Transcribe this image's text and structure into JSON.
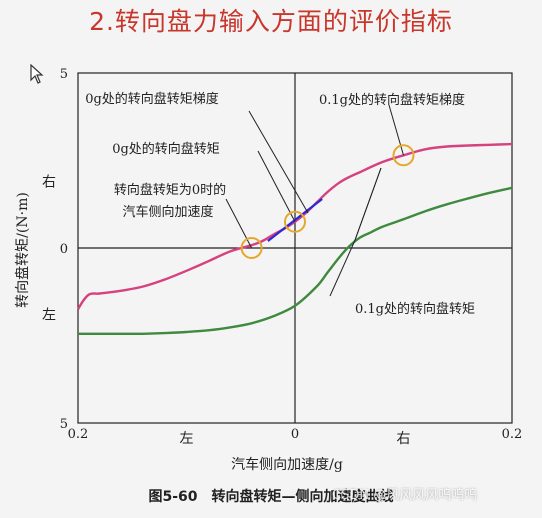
{
  "slide": {
    "title": "2.转向盘力输入方面的评价指标",
    "caption": "图5-60　转向盘转矩—侧向加速度曲线",
    "watermark": "CSDN @风风风风呜呜呜"
  },
  "chart_data": {
    "type": "line",
    "xlabel": "汽车侧向加速度/g",
    "ylabel": "转向盘转矩/(N·m)",
    "xlim": [
      -0.2,
      0.2
    ],
    "ylim": [
      -5,
      5
    ],
    "x_ticks": [
      {
        "value": -0.2,
        "label": "0.2"
      },
      {
        "value": 0,
        "label": "0"
      },
      {
        "value": 0.2,
        "label": "0.2"
      }
    ],
    "y_ticks": [
      {
        "value": 5,
        "label": "5"
      },
      {
        "value": 0,
        "label": "0"
      },
      {
        "value": -5,
        "label": "5"
      }
    ],
    "x_side_labels": [
      {
        "value": -0.1,
        "label": "左"
      },
      {
        "value": 0.1,
        "label": "右"
      }
    ],
    "y_side_labels": [
      {
        "value": 1.9,
        "label": "右"
      },
      {
        "value": -1.9,
        "label": "左"
      }
    ],
    "grid": false,
    "colors": {
      "series1": "#d6417f",
      "series2": "#3f8a3e",
      "highlight": "#e5a82b",
      "tangent": "#2a2ad4"
    },
    "series": [
      {
        "x": [
          -0.2,
          -0.195,
          -0.19,
          -0.185,
          -0.18,
          -0.16,
          -0.14,
          -0.12,
          -0.1,
          -0.08,
          -0.06,
          -0.04,
          -0.03,
          -0.02,
          -0.01,
          0,
          0.01,
          0.02,
          0.03,
          0.04,
          0.05,
          0.06,
          0.08,
          0.1,
          0.12,
          0.14,
          0.16,
          0.18,
          0.2
        ],
        "y": [
          -1.75,
          -1.5,
          -1.33,
          -1.3,
          -1.3,
          -1.22,
          -1.1,
          -0.9,
          -0.65,
          -0.38,
          -0.1,
          0.08,
          0.2,
          0.38,
          0.55,
          0.75,
          1.0,
          1.3,
          1.6,
          1.85,
          2.03,
          2.17,
          2.45,
          2.65,
          2.82,
          2.9,
          2.93,
          2.95,
          2.97
        ]
      },
      {
        "x": [
          -0.2,
          -0.18,
          -0.16,
          -0.14,
          -0.12,
          -0.1,
          -0.08,
          -0.06,
          -0.04,
          -0.02,
          0,
          0.02,
          0.03,
          0.04,
          0.05,
          0.06,
          0.07,
          0.08,
          0.1,
          0.12,
          0.14,
          0.16,
          0.18,
          0.2
        ],
        "y": [
          -2.45,
          -2.45,
          -2.45,
          -2.45,
          -2.43,
          -2.4,
          -2.35,
          -2.27,
          -2.15,
          -1.95,
          -1.65,
          -1.1,
          -0.7,
          -0.3,
          0.05,
          0.3,
          0.45,
          0.6,
          0.82,
          1.05,
          1.25,
          1.42,
          1.58,
          1.72
        ]
      }
    ],
    "markers": [
      {
        "x": -0.04,
        "y": 0,
        "label": "0g处的转向盘转矩梯度"
      },
      {
        "x": 0,
        "y": 0.75,
        "label": "0g处的转向盘转矩"
      },
      {
        "x": 0.1,
        "y": 2.65,
        "label": "0.1g处的转向盘转矩梯度"
      }
    ],
    "tangent": {
      "x": [
        -0.025,
        0.025
      ],
      "y": [
        0.2,
        1.4
      ]
    },
    "annotations": [
      {
        "text": "0g处的转向盘转矩梯度"
      },
      {
        "text": "0g处的转向盘转矩"
      },
      {
        "text": "转向盘转矩为0时的"
      },
      {
        "text": "汽车侧向加速度"
      },
      {
        "text": "0.1g处的转向盘转矩梯度"
      },
      {
        "text": "0.1g处的转向盘转矩"
      }
    ]
  }
}
